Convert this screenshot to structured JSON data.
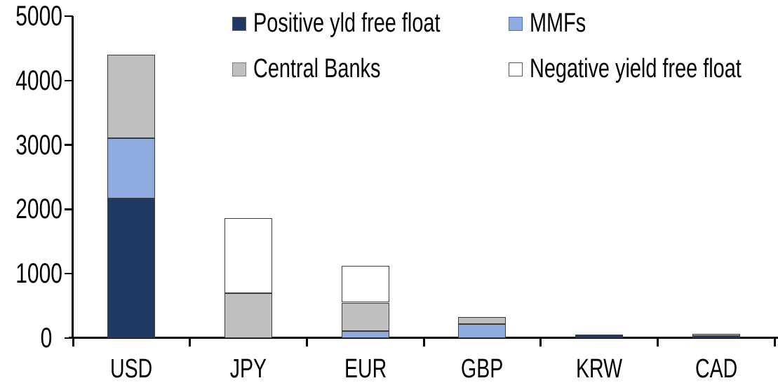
{
  "chart_data": {
    "type": "bar",
    "stacked": true,
    "title": "",
    "xlabel": "",
    "ylabel": "",
    "categories": [
      "USD",
      "JPY",
      "EUR",
      "GBP",
      "KRW",
      "CAD"
    ],
    "series": [
      {
        "name": "Positive yld free float",
        "color": "#1F3864",
        "legend_border": "#595959",
        "values": [
          2170,
          0,
          0,
          0,
          50,
          30
        ]
      },
      {
        "name": "MMFs",
        "color": "#8FAADC",
        "legend_border": "#4472C4",
        "values": [
          940,
          0,
          110,
          220,
          0,
          0
        ]
      },
      {
        "name": "Central Banks",
        "color": "#BFBFBF",
        "legend_border": "#7F7F7F",
        "values": [
          1290,
          700,
          440,
          110,
          0,
          35
        ]
      },
      {
        "name": "Negative yield free float",
        "color": "#FFFFFF",
        "legend_border": "#595959",
        "values": [
          0,
          1160,
          570,
          0,
          0,
          0
        ]
      }
    ],
    "totals_by_category": [
      4400,
      1860,
      1120,
      330,
      50,
      65
    ],
    "ylim": [
      0,
      5000
    ],
    "yticks": [
      0,
      1000,
      2000,
      3000,
      4000,
      5000
    ],
    "grid": false,
    "legend_position": "top-inside-two-columns",
    "axis_color": "#000000",
    "segment_border_color": "#3b3b3b",
    "background_color": "#FFFFFF"
  }
}
